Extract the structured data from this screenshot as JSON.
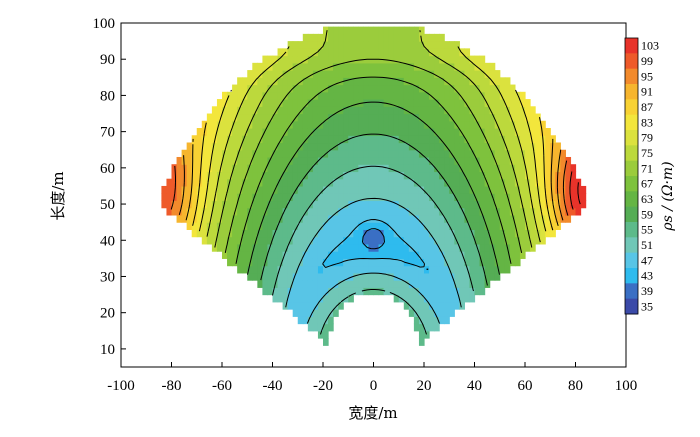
{
  "chart_data": {
    "type": "heatmap",
    "title": "",
    "xlabel": "宽度/m",
    "ylabel": "长度/m",
    "xlim": [
      -100,
      100
    ],
    "ylim": [
      5,
      100
    ],
    "x_ticks": [
      "-100",
      "-80",
      "-60",
      "-40",
      "-20",
      "0",
      "20",
      "40",
      "60",
      "80",
      "100"
    ],
    "y_ticks": [
      "10",
      "20",
      "30",
      "40",
      "50",
      "60",
      "70",
      "80",
      "90",
      "100"
    ],
    "colorbar": {
      "label": "ρs / (Ω·m)",
      "levels": [
        "103",
        "99",
        "95",
        "91",
        "87",
        "83",
        "79",
        "75",
        "71",
        "67",
        "63",
        "59",
        "55",
        "51",
        "47",
        "43",
        "39",
        "35"
      ],
      "colors": [
        "#e8332a",
        "#ee5a2a",
        "#f28a2c",
        "#f6b52e",
        "#f8d234",
        "#f3e63c",
        "#dbe23e",
        "#bcd93c",
        "#9bcc3c",
        "#7ec23d",
        "#64b544",
        "#55ad55",
        "#5dba8a",
        "#70c7b7",
        "#58c5e6",
        "#2ebbee",
        "#3a6fc4",
        "#3b4aa8"
      ]
    },
    "field": {
      "center_x": 0,
      "center_y": 1,
      "outer_radius": 99,
      "inner_radius_low": 20,
      "angle_range_deg": [
        -60,
        60
      ],
      "resistivity_range": [
        35,
        105
      ]
    }
  }
}
